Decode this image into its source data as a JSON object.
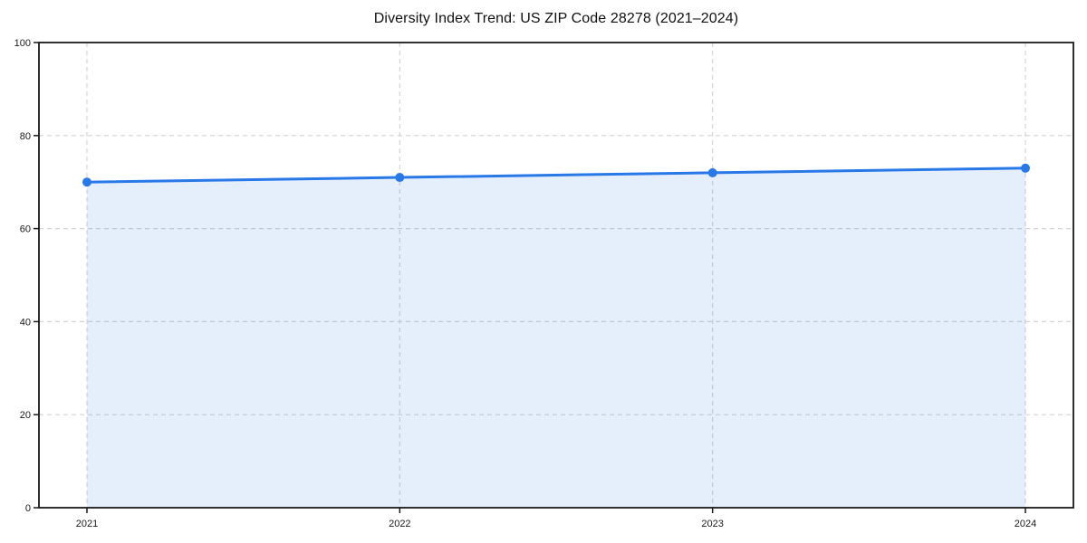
{
  "page": {
    "background": "#ffffff"
  },
  "chart_data": {
    "type": "area",
    "title": "Diversity Index Trend: US ZIP Code 28278 (2021–2024)",
    "x_labels": [
      "2021",
      "2022",
      "2023",
      "2024"
    ],
    "series": [
      {
        "name": "Diversity Index",
        "values": [
          70,
          71,
          72,
          73
        ]
      }
    ],
    "xlabel": "",
    "ylabel": "",
    "ylim": [
      0,
      100
    ],
    "yticks": [
      0,
      20,
      40,
      60,
      80,
      100
    ],
    "grid": true,
    "grid_style": "dashed",
    "legend": "none",
    "marker": "circle",
    "colors": {
      "line": "#2878e8",
      "marker": "#2878e8",
      "fill": "rgba(40,120,232,0.12)",
      "grid": "#d4d4d4",
      "spine": "#1a1a1a",
      "text": "#1a1a1a",
      "title": "#111111"
    }
  }
}
